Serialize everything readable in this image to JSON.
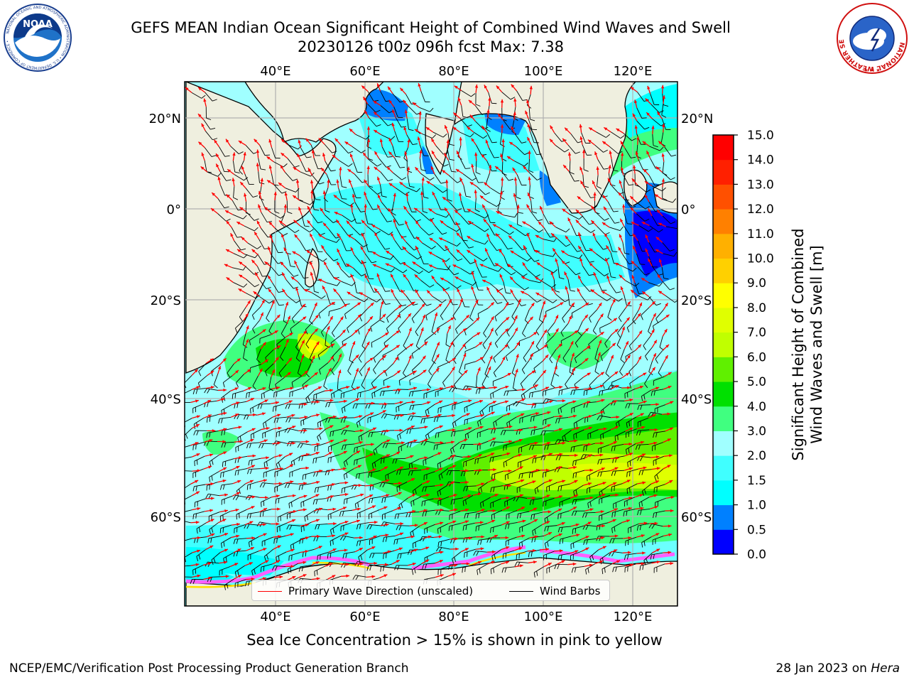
{
  "header": {
    "title_line1": "GEFS MEAN Indian Ocean Significant Height of Combined Wind Waves and Swell",
    "title_line2": "20230126 t00z 096h fcst   Max: 7.38"
  },
  "logos": {
    "left": {
      "icon": "noaa-logo-icon",
      "text": "NOAA"
    },
    "right": {
      "icon": "national-weather-service-logo-icon",
      "text": "NATIONAL WEATHER SERVICE"
    }
  },
  "map": {
    "longitude_ticks": [
      "40°E",
      "60°E",
      "80°E",
      "100°E",
      "120°E"
    ],
    "latitude_ticks": [
      "20°N",
      "0°",
      "20°S",
      "40°S",
      "60°S"
    ],
    "land_color": "#efefdf",
    "ocean_color": "#00ffff"
  },
  "legend": {
    "items": [
      {
        "label": "Primary Wave Direction (unscaled)",
        "color": "#ff0000"
      },
      {
        "label": "Wind Barbs",
        "color": "#000000"
      }
    ]
  },
  "colorbar": {
    "title_line1": "Significant Height of Combined",
    "title_line2": "Wind Waves and Swell [m]",
    "ticks": [
      "0.0",
      "0.5",
      "1.0",
      "1.5",
      "2.0",
      "3.0",
      "4.0",
      "5.0",
      "6.0",
      "7.0",
      "8.0",
      "9.0",
      "10.0",
      "11.0",
      "12.0",
      "13.0",
      "14.0",
      "15.0"
    ],
    "colors": [
      "#0000ff",
      "#0080ff",
      "#00ffff",
      "#40ffff",
      "#a0ffff",
      "#40ff80",
      "#00e000",
      "#60f000",
      "#c0ff00",
      "#e0ff00",
      "#ffff00",
      "#ffd000",
      "#ffb000",
      "#ff8000",
      "#ff5000",
      "#ff2000",
      "#ff0000"
    ]
  },
  "footer": {
    "ice_note": "Sea Ice Concentration > 15% is shown in pink to yellow",
    "left": "NCEP/EMC/Verification Post Processing Product Generation Branch",
    "right_prefix": "28 Jan 2023 on ",
    "right_host": "Hera"
  }
}
